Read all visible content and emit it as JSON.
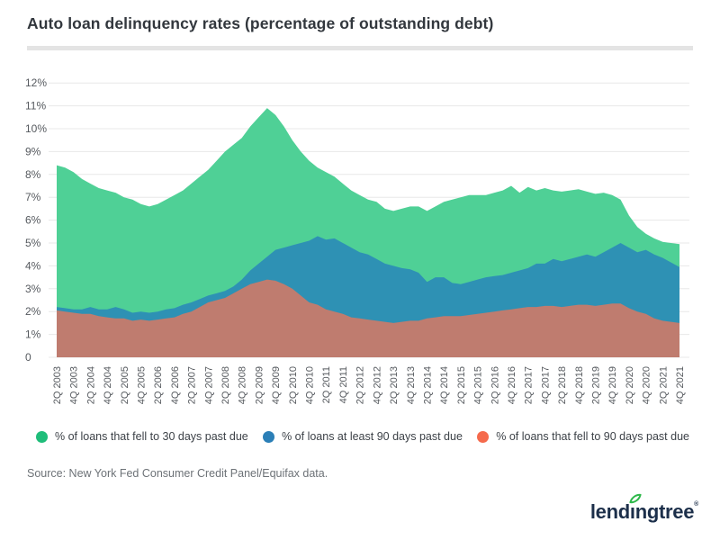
{
  "title": "Auto loan delinquency rates (percentage of outstanding debt)",
  "source": "Source: New York Fed Consumer Credit Panel/Equifax data.",
  "logo": {
    "pre": "lend",
    "dotless_i": "ı",
    "post": "ngtree",
    "mark": "®",
    "leaf_color": "#2eb84a",
    "text_color": "#1c2f4a"
  },
  "chart_data": {
    "type": "area",
    "mode": "overlapping",
    "title": "Auto loan delinquency rates (percentage of outstanding debt)",
    "ylabel": "",
    "xlabel": "",
    "ylim": [
      0,
      12
    ],
    "grid": "horizontal",
    "legend_position": "bottom",
    "y_tick_labels": [
      "0",
      "1%",
      "2%",
      "3%",
      "4%",
      "5%",
      "6%",
      "7%",
      "8%",
      "9%",
      "10%",
      "11%",
      "12%"
    ],
    "tick_every": 2,
    "categories": [
      "2Q 2003",
      "3Q 2003",
      "4Q 2003",
      "1Q 2004",
      "2Q 2004",
      "3Q 2004",
      "4Q 2004",
      "1Q 2005",
      "2Q 2005",
      "3Q 2005",
      "4Q 2005",
      "1Q 2006",
      "2Q 2006",
      "3Q 2006",
      "4Q 2006",
      "1Q 2007",
      "2Q 2007",
      "3Q 2007",
      "4Q 2007",
      "1Q 2008",
      "2Q 2008",
      "3Q 2008",
      "4Q 2008",
      "1Q 2009",
      "2Q 2009",
      "3Q 2009",
      "4Q 2009",
      "1Q 2010",
      "2Q 2010",
      "3Q 2010",
      "4Q 2010",
      "1Q 2011",
      "2Q 2011",
      "3Q 2011",
      "4Q 2011",
      "1Q 2012",
      "2Q 2012",
      "3Q 2012",
      "4Q 2012",
      "1Q 2013",
      "2Q 2013",
      "3Q 2013",
      "4Q 2013",
      "1Q 2014",
      "2Q 2014",
      "3Q 2014",
      "4Q 2014",
      "1Q 2015",
      "2Q 2015",
      "3Q 2015",
      "4Q 2015",
      "1Q 2016",
      "2Q 2016",
      "3Q 2016",
      "4Q 2016",
      "1Q 2017",
      "2Q 2017",
      "3Q 2017",
      "4Q 2017",
      "1Q 2018",
      "2Q 2018",
      "3Q 2018",
      "4Q 2018",
      "1Q 2019",
      "2Q 2019",
      "3Q 2019",
      "4Q 2019",
      "1Q 2020",
      "2Q 2020",
      "3Q 2020",
      "4Q 2020",
      "1Q 2021",
      "2Q 2021",
      "3Q 2021",
      "4Q 2021"
    ],
    "series": [
      {
        "name": "% of loans that fell to 30 days past due",
        "marker_color": "#1fbd7a",
        "fill_color": "#4fd096",
        "values": [
          8.4,
          8.3,
          8.1,
          7.8,
          7.6,
          7.4,
          7.3,
          7.2,
          7.0,
          6.9,
          6.7,
          6.6,
          6.7,
          6.9,
          7.1,
          7.3,
          7.6,
          7.9,
          8.2,
          8.6,
          9.0,
          9.3,
          9.6,
          10.1,
          10.5,
          10.9,
          10.6,
          10.1,
          9.5,
          9.0,
          8.6,
          8.3,
          8.1,
          7.9,
          7.6,
          7.3,
          7.1,
          6.9,
          6.8,
          6.5,
          6.4,
          6.5,
          6.6,
          6.6,
          6.4,
          6.6,
          6.8,
          6.9,
          7.0,
          7.1,
          7.1,
          7.1,
          7.2,
          7.3,
          7.5,
          7.2,
          7.45,
          7.3,
          7.4,
          7.3,
          7.25,
          7.3,
          7.35,
          7.25,
          7.15,
          7.2,
          7.1,
          6.9,
          6.2,
          5.7,
          5.4,
          5.2,
          5.05,
          5.0,
          4.95
        ]
      },
      {
        "name": "% of loans at least 90 days past due",
        "marker_color": "#2b7fb7",
        "fill_color": "#2e91b4",
        "values": [
          2.2,
          2.15,
          2.1,
          2.1,
          2.2,
          2.1,
          2.1,
          2.2,
          2.1,
          1.95,
          2.0,
          1.95,
          2.0,
          2.1,
          2.15,
          2.3,
          2.4,
          2.55,
          2.7,
          2.8,
          2.9,
          3.1,
          3.4,
          3.8,
          4.1,
          4.4,
          4.7,
          4.8,
          4.9,
          5.0,
          5.1,
          5.3,
          5.15,
          5.2,
          5.0,
          4.8,
          4.6,
          4.5,
          4.3,
          4.1,
          4.0,
          3.9,
          3.85,
          3.7,
          3.3,
          3.5,
          3.5,
          3.25,
          3.2,
          3.3,
          3.4,
          3.5,
          3.55,
          3.6,
          3.7,
          3.8,
          3.9,
          4.1,
          4.1,
          4.3,
          4.2,
          4.3,
          4.4,
          4.5,
          4.4,
          4.6,
          4.8,
          5.0,
          4.8,
          4.6,
          4.7,
          4.5,
          4.35,
          4.15,
          3.95
        ]
      },
      {
        "name": "% of loans that fell to 90 days past due",
        "marker_color": "#f56a4c",
        "fill_color": "#bf7c6f",
        "values": [
          2.05,
          2.0,
          1.95,
          1.9,
          1.9,
          1.8,
          1.75,
          1.7,
          1.7,
          1.6,
          1.65,
          1.6,
          1.65,
          1.7,
          1.75,
          1.9,
          2.0,
          2.2,
          2.4,
          2.5,
          2.6,
          2.8,
          3.0,
          3.2,
          3.3,
          3.4,
          3.35,
          3.2,
          3.0,
          2.7,
          2.4,
          2.3,
          2.1,
          2.0,
          1.9,
          1.75,
          1.7,
          1.65,
          1.6,
          1.55,
          1.5,
          1.55,
          1.6,
          1.6,
          1.7,
          1.75,
          1.8,
          1.8,
          1.8,
          1.85,
          1.9,
          1.95,
          2.0,
          2.05,
          2.1,
          2.15,
          2.2,
          2.2,
          2.25,
          2.25,
          2.2,
          2.25,
          2.3,
          2.3,
          2.25,
          2.3,
          2.35,
          2.35,
          2.15,
          2.0,
          1.9,
          1.7,
          1.6,
          1.55,
          1.5
        ]
      }
    ]
  },
  "style": {
    "grid_color": "#e8e8e8",
    "axis_label_color": "#55595e",
    "title_color": "#32373d",
    "divider_color": "#e4e4e4"
  }
}
